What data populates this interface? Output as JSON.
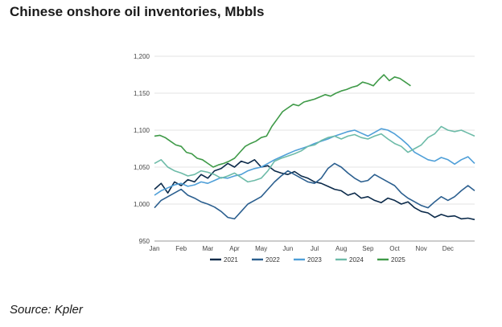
{
  "page": {
    "title": "Chinese onshore oil inventories, Mbbls",
    "source": "Source: Kpler"
  },
  "chart_data": {
    "type": "line",
    "title": "Chinese onshore oil inventories, Mbbls",
    "xlabel": "",
    "ylabel": "",
    "ylim": [
      950,
      1200
    ],
    "yticks": [
      950,
      1000,
      1050,
      1100,
      1150,
      1200
    ],
    "ytick_labels": [
      "950",
      "1,000",
      "1,050",
      "1,100",
      "1,150",
      "1,200"
    ],
    "xlim": [
      0,
      12
    ],
    "xticks": [
      0,
      1,
      2,
      3,
      4,
      5,
      6,
      7,
      8,
      9,
      10,
      11
    ],
    "xtick_labels": [
      "Jan",
      "Feb",
      "Mar",
      "Apr",
      "May",
      "Jun",
      "Jul",
      "Aug",
      "Sep",
      "Oct",
      "Nov",
      "Dec"
    ],
    "grid": "horizontal",
    "legend_position": "bottom",
    "series": [
      {
        "name": "2021",
        "color": "#0b2a4a",
        "x": [
          0,
          0.25,
          0.5,
          0.75,
          1,
          1.25,
          1.5,
          1.75,
          2,
          2.25,
          2.5,
          2.75,
          3,
          3.25,
          3.5,
          3.75,
          4,
          4.25,
          4.5,
          4.75,
          5,
          5.25,
          5.5,
          5.75,
          6,
          6.25,
          6.5,
          6.75,
          7,
          7.25,
          7.5,
          7.75,
          8,
          8.25,
          8.5,
          8.75,
          9,
          9.25,
          9.5,
          9.75,
          10,
          10.25,
          10.5,
          10.75,
          11,
          11.25,
          11.5,
          11.75,
          12
        ],
        "y": [
          1020,
          1028,
          1015,
          1030,
          1025,
          1033,
          1030,
          1040,
          1035,
          1045,
          1048,
          1055,
          1050,
          1058,
          1055,
          1060,
          1050,
          1052,
          1045,
          1042,
          1040,
          1044,
          1038,
          1035,
          1030,
          1028,
          1024,
          1020,
          1018,
          1012,
          1015,
          1008,
          1010,
          1005,
          1002,
          1008,
          1005,
          1000,
          1003,
          995,
          990,
          988,
          982,
          986,
          983,
          984,
          980,
          981,
          979
        ]
      },
      {
        "name": "2022",
        "color": "#2b5f8f",
        "x": [
          0,
          0.25,
          0.5,
          0.75,
          1,
          1.25,
          1.5,
          1.75,
          2,
          2.25,
          2.5,
          2.75,
          3,
          3.25,
          3.5,
          3.75,
          4,
          4.25,
          4.5,
          4.75,
          5,
          5.25,
          5.5,
          5.75,
          6,
          6.25,
          6.5,
          6.75,
          7,
          7.25,
          7.5,
          7.75,
          8,
          8.25,
          8.5,
          8.75,
          9,
          9.25,
          9.5,
          9.75,
          10,
          10.25,
          10.5,
          10.75,
          11,
          11.25,
          11.5,
          11.75,
          12
        ],
        "y": [
          995,
          1005,
          1010,
          1015,
          1020,
          1012,
          1008,
          1003,
          1000,
          996,
          990,
          982,
          980,
          990,
          1000,
          1005,
          1010,
          1020,
          1030,
          1038,
          1045,
          1040,
          1035,
          1030,
          1028,
          1035,
          1048,
          1055,
          1050,
          1042,
          1035,
          1030,
          1032,
          1040,
          1035,
          1030,
          1025,
          1015,
          1008,
          1003,
          998,
          995,
          1003,
          1010,
          1005,
          1010,
          1018,
          1025,
          1018
        ]
      },
      {
        "name": "2023",
        "color": "#4f9fd8",
        "x": [
          0,
          0.25,
          0.5,
          0.75,
          1,
          1.25,
          1.5,
          1.75,
          2,
          2.25,
          2.5,
          2.75,
          3,
          3.25,
          3.5,
          3.75,
          4,
          4.25,
          4.5,
          4.75,
          5,
          5.25,
          5.5,
          5.75,
          6,
          6.25,
          6.5,
          6.75,
          7,
          7.25,
          7.5,
          7.75,
          8,
          8.25,
          8.5,
          8.75,
          9,
          9.25,
          9.5,
          9.75,
          10,
          10.25,
          10.5,
          10.75,
          11,
          11.25,
          11.5,
          11.75,
          12
        ],
        "y": [
          1012,
          1018,
          1022,
          1026,
          1028,
          1024,
          1026,
          1030,
          1028,
          1032,
          1036,
          1035,
          1038,
          1040,
          1045,
          1048,
          1050,
          1055,
          1060,
          1064,
          1068,
          1072,
          1075,
          1078,
          1082,
          1085,
          1088,
          1092,
          1095,
          1098,
          1100,
          1096,
          1092,
          1097,
          1102,
          1100,
          1095,
          1088,
          1080,
          1070,
          1065,
          1060,
          1058,
          1063,
          1060,
          1054,
          1060,
          1064,
          1055
        ]
      },
      {
        "name": "2024",
        "color": "#6dbba8",
        "x": [
          0,
          0.25,
          0.5,
          0.75,
          1,
          1.25,
          1.5,
          1.75,
          2,
          2.25,
          2.5,
          2.75,
          3,
          3.25,
          3.5,
          3.75,
          4,
          4.25,
          4.5,
          4.75,
          5,
          5.25,
          5.5,
          5.75,
          6,
          6.25,
          6.5,
          6.75,
          7,
          7.25,
          7.5,
          7.75,
          8,
          8.25,
          8.5,
          8.75,
          9,
          9.25,
          9.5,
          9.75,
          10,
          10.25,
          10.5,
          10.75,
          11,
          11.25,
          11.5,
          11.75,
          12
        ],
        "y": [
          1055,
          1060,
          1050,
          1045,
          1042,
          1038,
          1040,
          1045,
          1043,
          1040,
          1035,
          1038,
          1042,
          1036,
          1030,
          1032,
          1035,
          1045,
          1058,
          1062,
          1065,
          1068,
          1072,
          1078,
          1080,
          1086,
          1090,
          1092,
          1088,
          1092,
          1094,
          1090,
          1088,
          1092,
          1095,
          1088,
          1082,
          1078,
          1070,
          1075,
          1080,
          1090,
          1095,
          1105,
          1100,
          1098,
          1100,
          1096,
          1092
        ]
      },
      {
        "name": "2025",
        "color": "#3f9a48",
        "x": [
          0,
          0.2,
          0.4,
          0.6,
          0.8,
          1,
          1.2,
          1.4,
          1.6,
          1.8,
          2,
          2.2,
          2.4,
          2.6,
          2.8,
          3,
          3.2,
          3.4,
          3.6,
          3.8,
          4,
          4.2,
          4.4,
          4.6,
          4.8,
          5,
          5.2,
          5.4,
          5.6,
          5.8,
          6,
          6.2,
          6.4,
          6.6,
          6.8,
          7,
          7.2,
          7.4,
          7.6,
          7.8,
          8,
          8.2,
          8.4,
          8.6,
          8.8,
          9,
          9.2,
          9.4,
          9.6
        ],
        "y": [
          1092,
          1093,
          1090,
          1085,
          1080,
          1078,
          1070,
          1068,
          1062,
          1060,
          1055,
          1050,
          1053,
          1055,
          1058,
          1062,
          1070,
          1078,
          1082,
          1085,
          1090,
          1092,
          1105,
          1115,
          1125,
          1130,
          1135,
          1133,
          1138,
          1140,
          1142,
          1145,
          1148,
          1146,
          1150,
          1153,
          1155,
          1158,
          1160,
          1165,
          1163,
          1160,
          1168,
          1175,
          1167,
          1172,
          1170,
          1165,
          1160
        ]
      }
    ]
  }
}
